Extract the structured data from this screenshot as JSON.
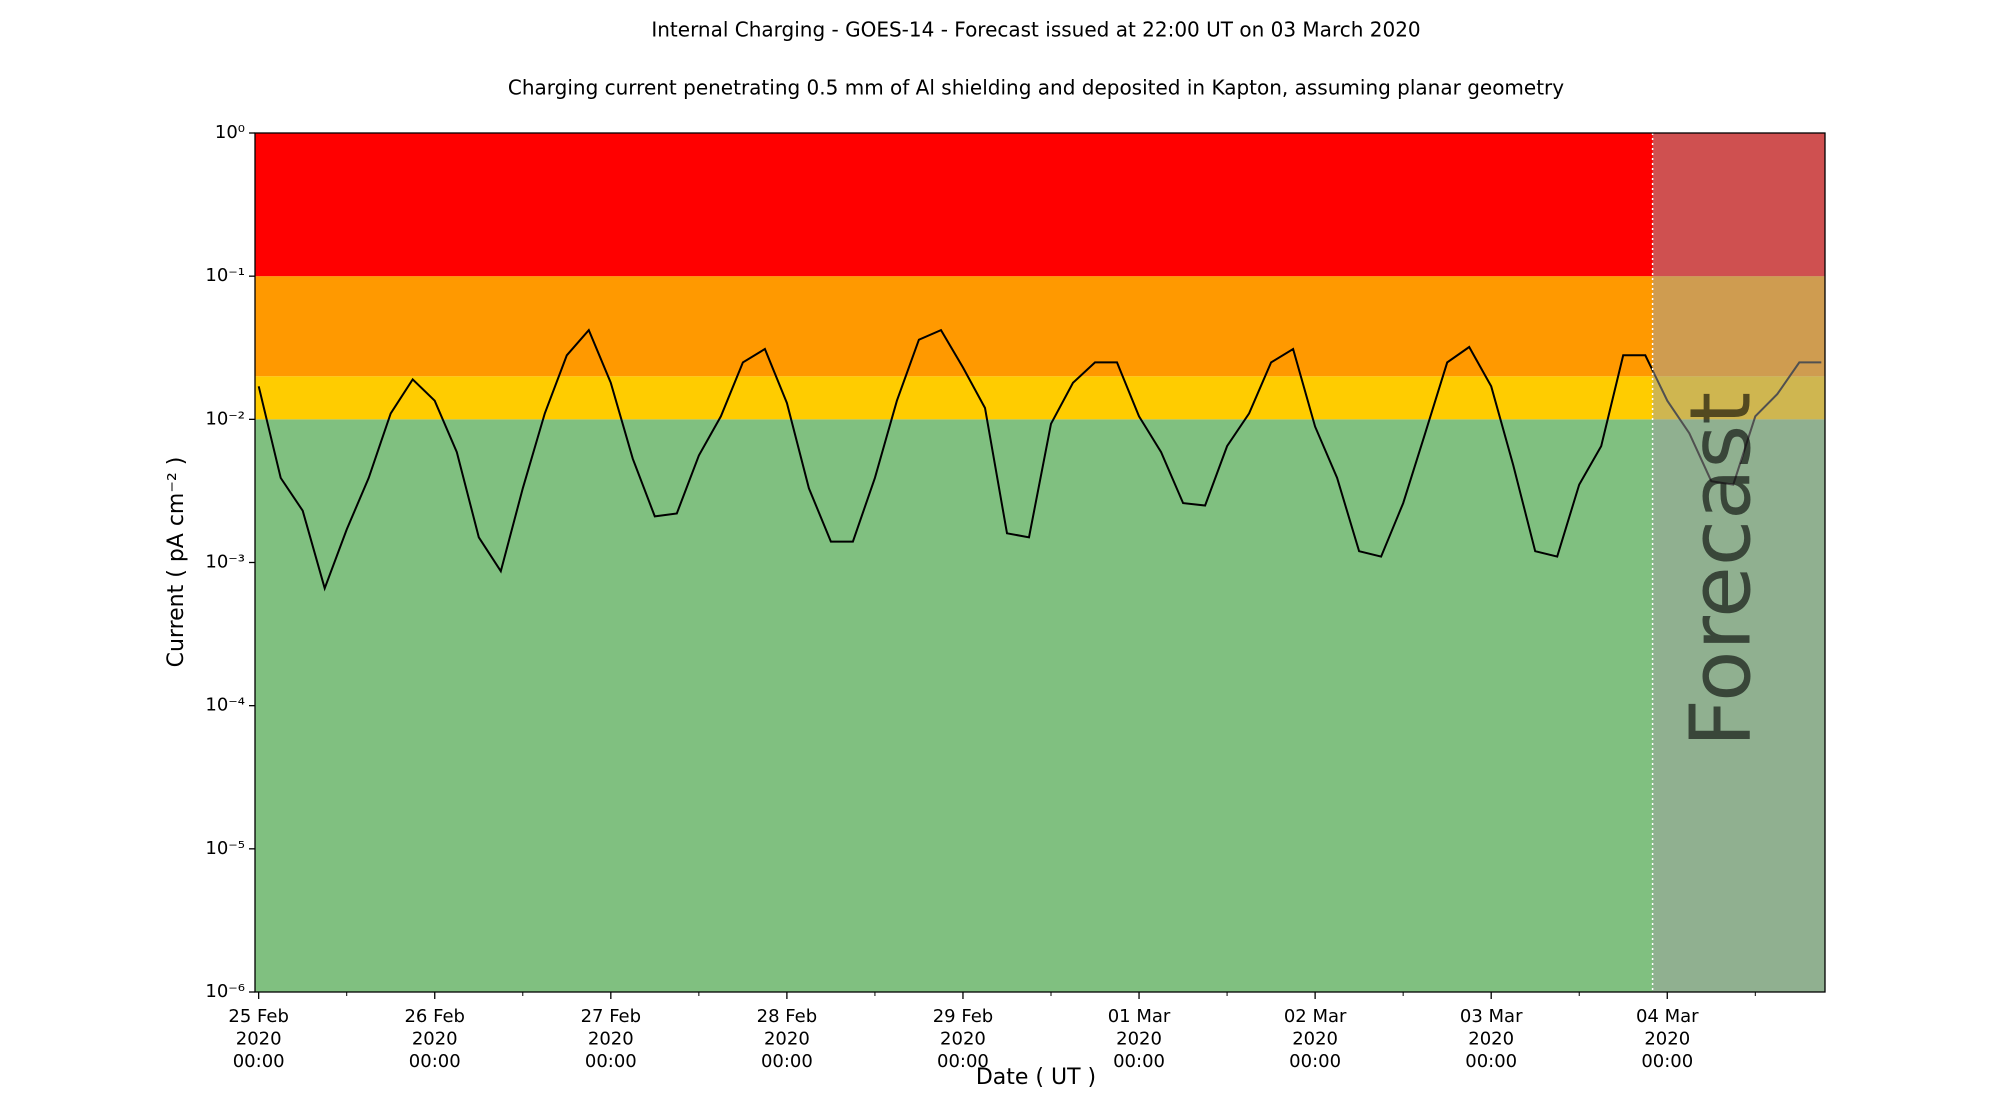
{
  "chart_data": {
    "type": "line",
    "title": "Internal Charging - GOES-14 - Forecast issued at 22:00 UT on 03 March 2020",
    "subtitle": "Charging current penetrating 0.5 mm of Al shielding and deposited in Kapton, assuming planar geometry",
    "xlabel": "Date ( UT )",
    "ylabel": "Current ( pA cm⁻² )",
    "log_y": true,
    "ylim": [
      1e-06,
      1
    ],
    "yticks": [
      {
        "value": 1e-06,
        "label": "10⁻⁶"
      },
      {
        "value": 1e-05,
        "label": "10⁻⁵"
      },
      {
        "value": 0.0001,
        "label": "10⁻⁴"
      },
      {
        "value": 0.001,
        "label": "10⁻³"
      },
      {
        "value": 0.01,
        "label": "10⁻²"
      },
      {
        "value": 0.1,
        "label": "10⁻¹"
      },
      {
        "value": 1,
        "label": "10⁰"
      }
    ],
    "xlim": [
      "2020-02-24T23:30",
      "2020-03-04T21:30"
    ],
    "xticks": [
      {
        "value": "2020-02-25T00:00",
        "label": "25 Feb\n2020\n00:00"
      },
      {
        "value": "2020-02-26T00:00",
        "label": "26 Feb\n2020\n00:00"
      },
      {
        "value": "2020-02-27T00:00",
        "label": "27 Feb\n2020\n00:00"
      },
      {
        "value": "2020-02-28T00:00",
        "label": "28 Feb\n2020\n00:00"
      },
      {
        "value": "2020-02-29T00:00",
        "label": "29 Feb\n2020\n00:00"
      },
      {
        "value": "2020-03-01T00:00",
        "label": "01 Mar\n2020\n00:00"
      },
      {
        "value": "2020-03-02T00:00",
        "label": "02 Mar\n2020\n00:00"
      },
      {
        "value": "2020-03-03T00:00",
        "label": "03 Mar\n2020\n00:00"
      },
      {
        "value": "2020-03-04T00:00",
        "label": "04 Mar\n2020\n00:00"
      }
    ],
    "xminorticks": [
      "2020-02-25T12:00",
      "2020-02-26T12:00",
      "2020-02-27T12:00",
      "2020-02-28T12:00",
      "2020-02-29T12:00",
      "2020-03-01T12:00",
      "2020-03-02T12:00",
      "2020-03-03T12:00",
      "2020-03-04T12:00"
    ],
    "zones": [
      {
        "ymin": 1e-06,
        "ymax": 0.01,
        "color": "#80c080"
      },
      {
        "ymin": 0.01,
        "ymax": 0.02,
        "color": "#ffcc00"
      },
      {
        "ymin": 0.02,
        "ymax": 0.1,
        "color": "#ff9900"
      },
      {
        "ymin": 0.1,
        "ymax": 1,
        "color": "#ff0000"
      }
    ],
    "forecast": {
      "start": "2020-03-03T22:00",
      "label": "Forecast",
      "color": "#a0a0a0"
    },
    "x": [
      "2020-02-25T00:00",
      "2020-02-25T03:00",
      "2020-02-25T06:00",
      "2020-02-25T09:00",
      "2020-02-25T12:00",
      "2020-02-25T15:00",
      "2020-02-25T18:00",
      "2020-02-25T21:00",
      "2020-02-26T00:00",
      "2020-02-26T03:00",
      "2020-02-26T06:00",
      "2020-02-26T09:00",
      "2020-02-26T12:00",
      "2020-02-26T15:00",
      "2020-02-26T18:00",
      "2020-02-26T21:00",
      "2020-02-27T00:00",
      "2020-02-27T03:00",
      "2020-02-27T06:00",
      "2020-02-27T09:00",
      "2020-02-27T12:00",
      "2020-02-27T15:00",
      "2020-02-27T18:00",
      "2020-02-27T21:00",
      "2020-02-28T00:00",
      "2020-02-28T03:00",
      "2020-02-28T06:00",
      "2020-02-28T09:00",
      "2020-02-28T12:00",
      "2020-02-28T15:00",
      "2020-02-28T18:00",
      "2020-02-28T21:00",
      "2020-02-29T00:00",
      "2020-02-29T03:00",
      "2020-02-29T06:00",
      "2020-02-29T09:00",
      "2020-02-29T12:00",
      "2020-02-29T15:00",
      "2020-02-29T18:00",
      "2020-02-29T21:00",
      "2020-03-01T00:00",
      "2020-03-01T03:00",
      "2020-03-01T06:00",
      "2020-03-01T09:00",
      "2020-03-01T12:00",
      "2020-03-01T15:00",
      "2020-03-01T18:00",
      "2020-03-01T21:00",
      "2020-03-02T00:00",
      "2020-03-02T03:00",
      "2020-03-02T06:00",
      "2020-03-02T09:00",
      "2020-03-02T12:00",
      "2020-03-02T15:00",
      "2020-03-02T18:00",
      "2020-03-02T21:00",
      "2020-03-03T00:00",
      "2020-03-03T03:00",
      "2020-03-03T06:00",
      "2020-03-03T09:00",
      "2020-03-03T12:00",
      "2020-03-03T15:00",
      "2020-03-03T18:00",
      "2020-03-03T21:00",
      "2020-03-04T00:00",
      "2020-03-04T03:00",
      "2020-03-04T06:00",
      "2020-03-04T09:00",
      "2020-03-04T12:00",
      "2020-03-04T15:00",
      "2020-03-04T18:00",
      "2020-03-04T21:00"
    ],
    "series": [
      {
        "color": "#000000",
        "values": [
          0.017,
          0.0039,
          0.0023,
          0.00066,
          0.0017,
          0.0039,
          0.011,
          0.019,
          0.0135,
          0.0059,
          0.0015,
          0.00087,
          0.0033,
          0.011,
          0.028,
          0.042,
          0.018,
          0.0053,
          0.0021,
          0.0022,
          0.0056,
          0.0105,
          0.025,
          0.031,
          0.013,
          0.0033,
          0.0014,
          0.0014,
          0.0039,
          0.0135,
          0.036,
          0.042,
          0.023,
          0.012,
          0.0016,
          0.0015,
          0.0093,
          0.018,
          0.025,
          0.025,
          0.0105,
          0.0059,
          0.0026,
          0.0025,
          0.0065,
          0.011,
          0.025,
          0.031,
          0.0089,
          0.0039,
          0.0012,
          0.0011,
          0.0026,
          0.008,
          0.025,
          0.032,
          0.017,
          0.0048,
          0.0012,
          0.0011,
          0.0035,
          0.0065,
          0.028,
          0.028,
          0.0135,
          0.008,
          0.0037,
          0.0035,
          0.0105,
          0.015,
          0.025,
          0.025
        ]
      }
    ]
  }
}
